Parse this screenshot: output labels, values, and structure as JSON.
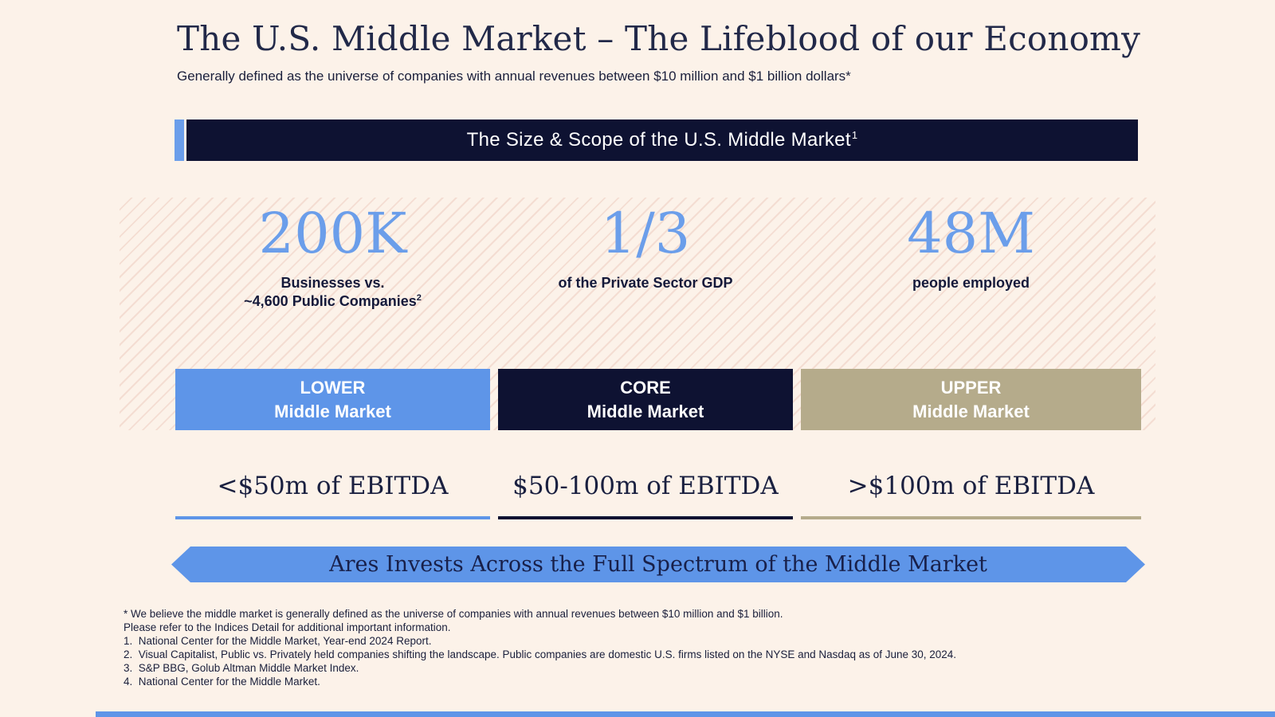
{
  "page": {
    "title": "The U.S. Middle Market – The Lifeblood of our Economy",
    "subtitle": "Generally defined as the universe of companies with annual revenues between $10 million and $1 billion dollars*"
  },
  "banner": {
    "text": "The Size & Scope of the U.S. Middle Market",
    "superscript": "1"
  },
  "stats": [
    {
      "value": "200K",
      "label_line1": "Businesses vs.",
      "label_line2": "~4,600 Public Companies",
      "label_sup": "2"
    },
    {
      "value": "1/3",
      "label_line1": "of the Private Sector GDP"
    },
    {
      "value": "48M",
      "label_line1": "people employed"
    }
  ],
  "segments": [
    {
      "tier": "LOWER",
      "name": "Middle Market",
      "ebitda": "<$50m of EBITDA",
      "color": "#5e95e8"
    },
    {
      "tier": "CORE",
      "name": "Middle Market",
      "ebitda": "$50-100m of EBITDA",
      "color": "#0e1232"
    },
    {
      "tier": "UPPER",
      "name": "Middle Market",
      "ebitda": ">$100m of EBITDA",
      "color": "#b5ab8b"
    }
  ],
  "arrow_banner": {
    "text": "Ares Invests Across the Full Spectrum of the Middle Market"
  },
  "footnotes": [
    "* We believe the middle market is generally defined as the universe of companies with annual revenues between $10 million and $1 billion.",
    "Please refer to the Indices Detail for additional important information.",
    "1.  National Center for the Middle Market, Year-end 2024 Report.",
    "2.  Visual Capitalist, Public vs. Privately held companies shifting the landscape. Public companies are domestic U.S. firms listed on the NYSE and Nasdaq as of June 30, 2024.",
    "3.  S&P BBG, Golub Altman Middle Market Index.",
    "4.  National Center for the Middle Market."
  ],
  "colors": {
    "background_cream": "#fcf2e9",
    "navy": "#0e1232",
    "accent_blue": "#5e95e8",
    "stat_blue": "#6b9eea",
    "tan": "#b5ab8b",
    "hatch_line": "#f4ddd2",
    "title_navy": "#222949"
  }
}
